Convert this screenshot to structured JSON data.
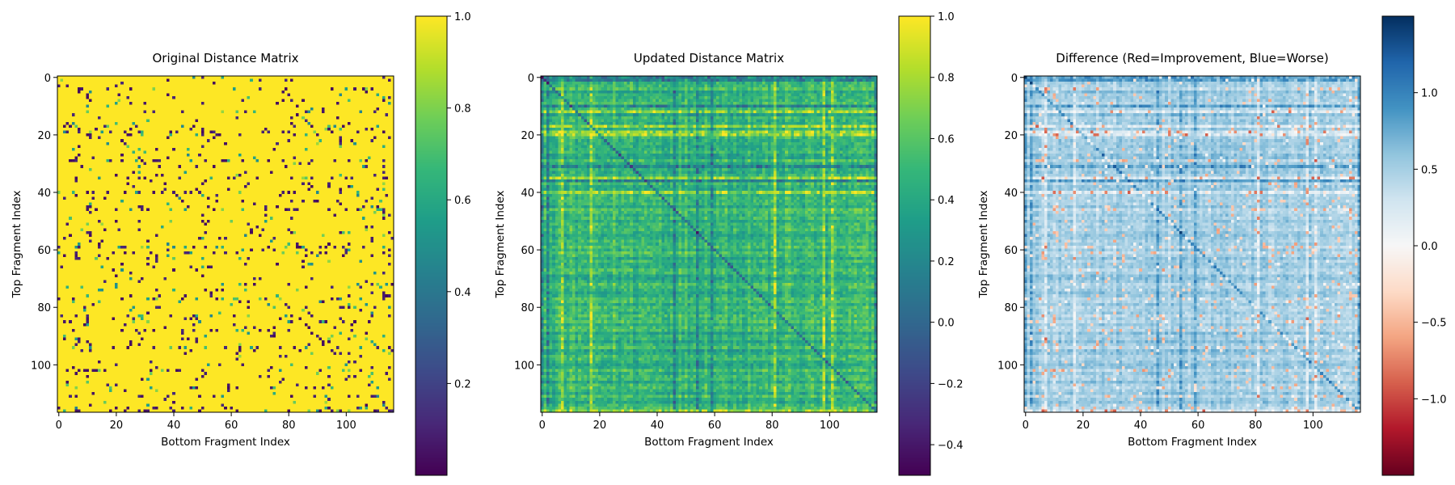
{
  "chart_data": [
    {
      "type": "heatmap",
      "title": "Original Distance Matrix",
      "xlabel": "Bottom Fragment Index",
      "ylabel": "Top Fragment Index",
      "rows": 117,
      "cols": 117,
      "x_ticks": [
        0,
        20,
        40,
        60,
        80,
        100
      ],
      "y_ticks": [
        0,
        20,
        40,
        60,
        80,
        100
      ],
      "colormap": "viridis",
      "value_range": [
        0.0,
        1.0
      ],
      "colorbar_ticks": [
        0.2,
        0.4,
        0.6,
        0.8,
        1.0
      ],
      "colorbar_tick_labels": [
        "0.2",
        "0.4",
        "0.6",
        "0.8",
        "1.0"
      ],
      "description": "Mostly 1.0 (yellow) with scattered low-distance cells (dark purple / teal)"
    },
    {
      "type": "heatmap",
      "title": "Updated Distance Matrix",
      "xlabel": "Bottom Fragment Index",
      "ylabel": "Top Fragment Index",
      "rows": 117,
      "cols": 117,
      "x_ticks": [
        0,
        20,
        40,
        60,
        80,
        100
      ],
      "y_ticks": [
        0,
        20,
        40,
        60,
        80,
        100
      ],
      "colormap": "viridis",
      "value_range": [
        -0.5,
        1.0
      ],
      "colorbar_ticks": [
        -0.4,
        -0.2,
        0.0,
        0.2,
        0.4,
        0.6,
        0.8,
        1.0
      ],
      "colorbar_tick_labels": [
        "−0.4",
        "−0.2",
        "0.0",
        "0.2",
        "0.4",
        "0.6",
        "0.8",
        "1.0"
      ],
      "description": "Values mostly 0.2–0.6 (teal/green) with row/column banding"
    },
    {
      "type": "heatmap",
      "title": "Difference (Red=Improvement, Blue=Worse)",
      "xlabel": "Bottom Fragment Index",
      "ylabel": "Top Fragment Index",
      "rows": 117,
      "cols": 117,
      "x_ticks": [
        0,
        20,
        40,
        60,
        80,
        100
      ],
      "y_ticks": [
        0,
        20,
        40,
        60,
        80,
        100
      ],
      "colormap": "RdBu",
      "value_range": [
        -1.5,
        1.5
      ],
      "colorbar_ticks": [
        -1.0,
        -0.5,
        0.0,
        0.5,
        1.0
      ],
      "colorbar_tick_labels": [
        "−1.0",
        "−0.5",
        "0.0",
        "0.5",
        "1.0"
      ],
      "description": "Mostly positive (light to mid blue) with a few faint red cells"
    }
  ]
}
